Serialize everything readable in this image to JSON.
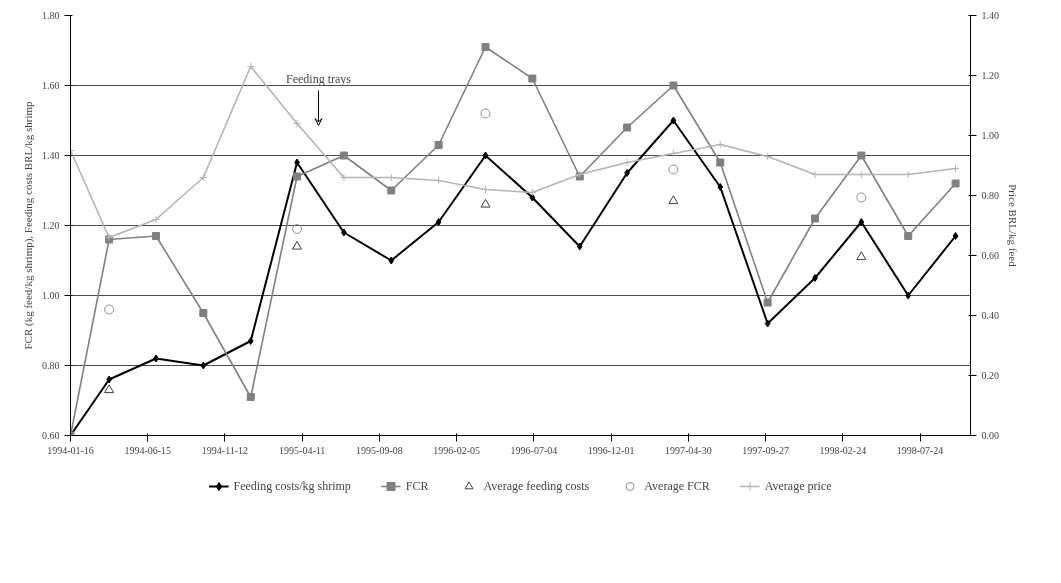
{
  "chart_data": {
    "type": "line",
    "xlabel": null,
    "ylabel": "FCR (kg feed/kg shrimp), Feeding costs BRL/kg shrimp",
    "y2label": "Price BRL/kg feed",
    "x": [
      "1994-01-16",
      "1994-04-01",
      "1994-07-01",
      "1994-10-01",
      "1995-01-01",
      "1995-04-01",
      "1995-07-01",
      "1995-10-01",
      "1996-01-01",
      "1996-04-01",
      "1996-07-01",
      "1996-10-01",
      "1997-01-01",
      "1997-04-01",
      "1997-07-01",
      "1997-10-01",
      "1998-01-01",
      "1998-04-01",
      "1998-07-01",
      "1998-10-01"
    ],
    "series": [
      {
        "name": "Feeding costs/kg shrimp",
        "color": "#000000",
        "marker": "diamond",
        "values": [
          0.6,
          0.76,
          0.82,
          0.8,
          0.87,
          1.38,
          1.18,
          1.1,
          1.21,
          1.4,
          1.28,
          1.14,
          1.35,
          1.5,
          1.31,
          0.92,
          1.05,
          1.21,
          1.0,
          1.17
        ]
      },
      {
        "name": "FCR",
        "color": "#808080",
        "marker": "square",
        "values": [
          0.6,
          1.16,
          1.17,
          0.95,
          0.71,
          1.34,
          1.4,
          1.3,
          1.43,
          1.71,
          1.62,
          1.34,
          1.48,
          1.6,
          1.38,
          0.98,
          1.22,
          1.4,
          1.17,
          1.32
        ]
      },
      {
        "name": "Average feeding costs",
        "type": "scatter",
        "color": "#404040",
        "marker": "triangle",
        "x": [
          "1994-04-01",
          "1995-04-01",
          "1996-04-01",
          "1997-04-01",
          "1998-04-01"
        ],
        "values": [
          0.73,
          1.14,
          1.26,
          1.27,
          1.11
        ]
      },
      {
        "name": "Average FCR",
        "type": "scatter",
        "color": "#909090",
        "marker": "circle",
        "x": [
          "1994-04-01",
          "1995-04-01",
          "1996-04-01",
          "1997-04-01",
          "1998-04-01"
        ],
        "values": [
          0.96,
          1.19,
          1.52,
          1.36,
          1.28
        ]
      },
      {
        "name": "Average price",
        "color": "#b4b4b4",
        "marker": "cross",
        "axis": "y2",
        "values": [
          0.95,
          0.66,
          0.72,
          0.86,
          1.23,
          1.04,
          0.86,
          0.86,
          0.85,
          0.82,
          0.81,
          0.87,
          0.91,
          0.94,
          0.97,
          0.93,
          0.87,
          0.87,
          0.87,
          0.89
        ]
      }
    ],
    "xlim": [
      "1994-01-16",
      "1998-10-30"
    ],
    "xticks": [
      "1994-01-16",
      "1994-06-15",
      "1994-11-12",
      "1995-04-11",
      "1995-09-08",
      "1996-02-05",
      "1996-07-04",
      "1996-12-01",
      "1997-04-30",
      "1997-09-27",
      "1998-02-24",
      "1998-07-24"
    ],
    "ylim": [
      0.6,
      1.8
    ],
    "yticks": [
      {
        "value": 0.6,
        "label": "0.60"
      },
      {
        "value": 0.8,
        "label": "0.80"
      },
      {
        "value": 1.0,
        "label": "1.00"
      },
      {
        "value": 1.2,
        "label": "1.20"
      },
      {
        "value": 1.4,
        "label": "1.40"
      },
      {
        "value": 1.6,
        "label": "1.60"
      },
      {
        "value": 1.8,
        "label": "1.80"
      }
    ],
    "y2lim": [
      0,
      1.4
    ],
    "y2ticks": [
      {
        "value": 0,
        "label": "0.00"
      },
      {
        "value": 0.2,
        "label": "0.20"
      },
      {
        "value": 0.4,
        "label": "0.40"
      },
      {
        "value": 0.6,
        "label": "0.60"
      },
      {
        "value": 0.8,
        "label": "0.80"
      },
      {
        "value": 1.0,
        "label": "1.00"
      },
      {
        "value": 1.2,
        "label": "1.20"
      },
      {
        "value": 1.4,
        "label": "1.40"
      }
    ],
    "grid": "y",
    "legend": "bottom",
    "line_style": "solid",
    "annotations": [
      "Feeding trays"
    ]
  }
}
